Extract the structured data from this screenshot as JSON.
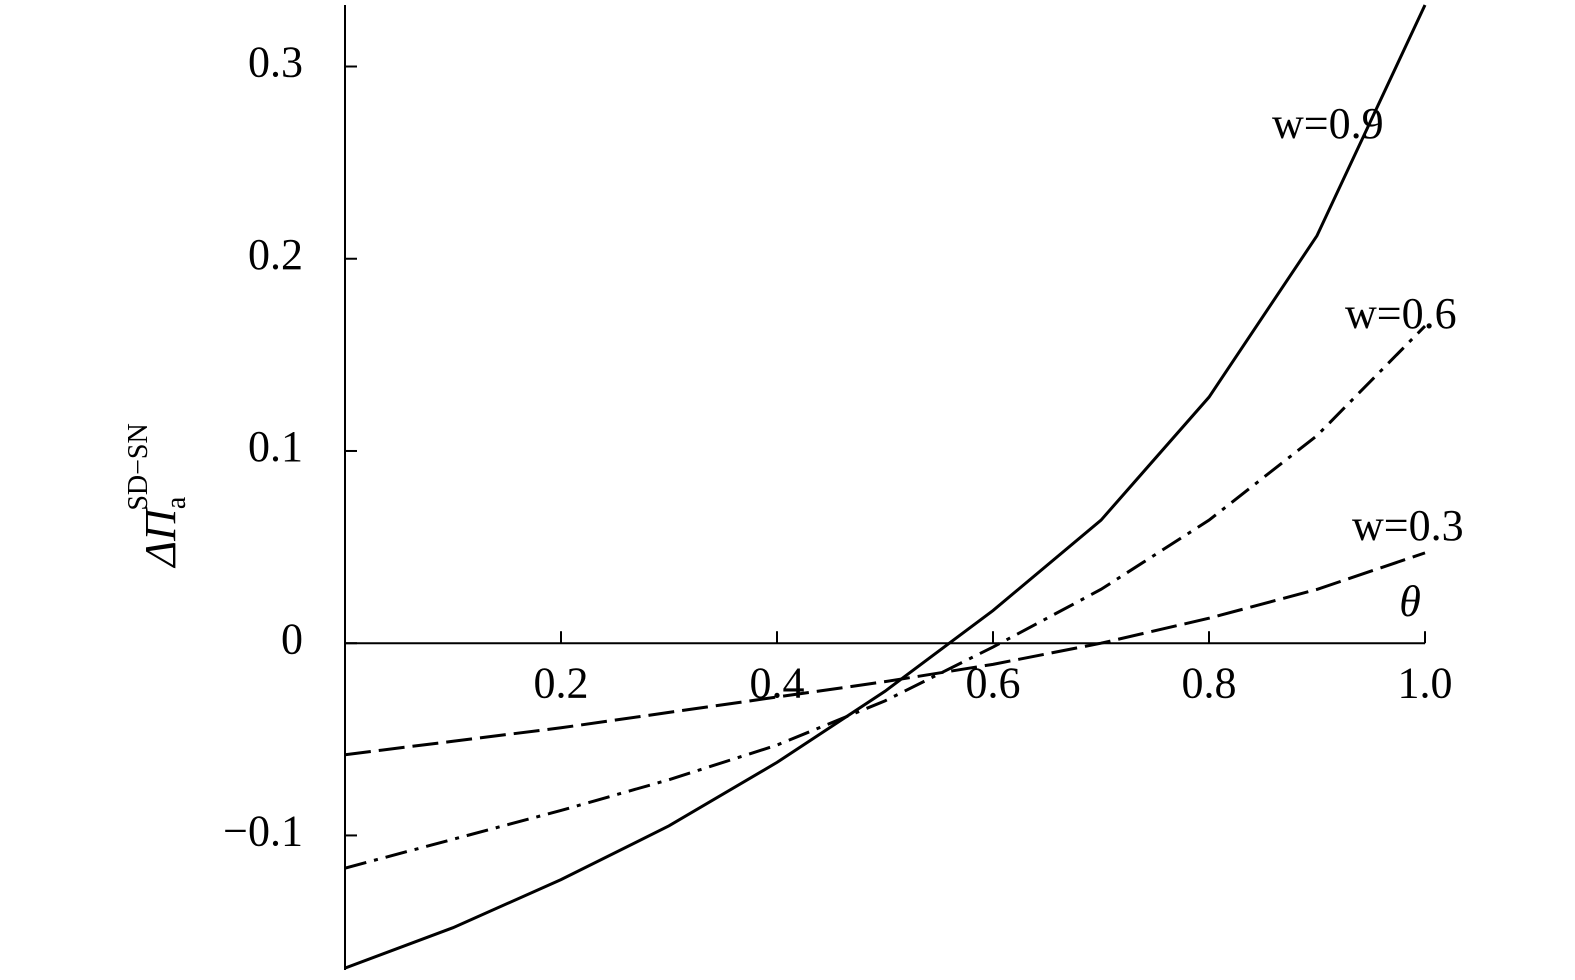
{
  "chart_data": {
    "type": "line",
    "x_label": "θ",
    "y_label": {
      "base": "ΔΠ",
      "sub": "a",
      "sup": "SD−SN"
    },
    "x": [
      0,
      0.1,
      0.2,
      0.3,
      0.4,
      0.5,
      0.6,
      0.7,
      0.8,
      0.9,
      1.0
    ],
    "series": [
      {
        "name": "w=0.9",
        "color": "#000000",
        "dash": "solid",
        "values": [
          -0.169,
          -0.148,
          -0.123,
          -0.095,
          -0.062,
          -0.025,
          0.017,
          0.064,
          0.128,
          0.212,
          0.332
        ]
      },
      {
        "name": "w=0.6",
        "color": "#000000",
        "dash": "dashdot",
        "values": [
          -0.117,
          -0.102,
          -0.087,
          -0.071,
          -0.053,
          -0.03,
          -0.002,
          0.028,
          0.064,
          0.108,
          0.165
        ]
      },
      {
        "name": "w=0.3",
        "color": "#000000",
        "dash": "dashed",
        "values": [
          -0.058,
          -0.051,
          -0.044,
          -0.036,
          -0.028,
          -0.02,
          -0.011,
          0.0,
          0.013,
          0.028,
          0.047
        ]
      }
    ],
    "xlim": [
      0,
      1
    ],
    "ylim": [
      -0.17,
      0.332
    ],
    "xticks": [
      0.2,
      0.4,
      0.6,
      0.8,
      {
        "value": 1,
        "label": "1.0"
      }
    ],
    "yticks": [
      0.3,
      0.2,
      0.1,
      0,
      {
        "value": -0.1,
        "label": "−0.1"
      }
    ],
    "grid": false
  }
}
